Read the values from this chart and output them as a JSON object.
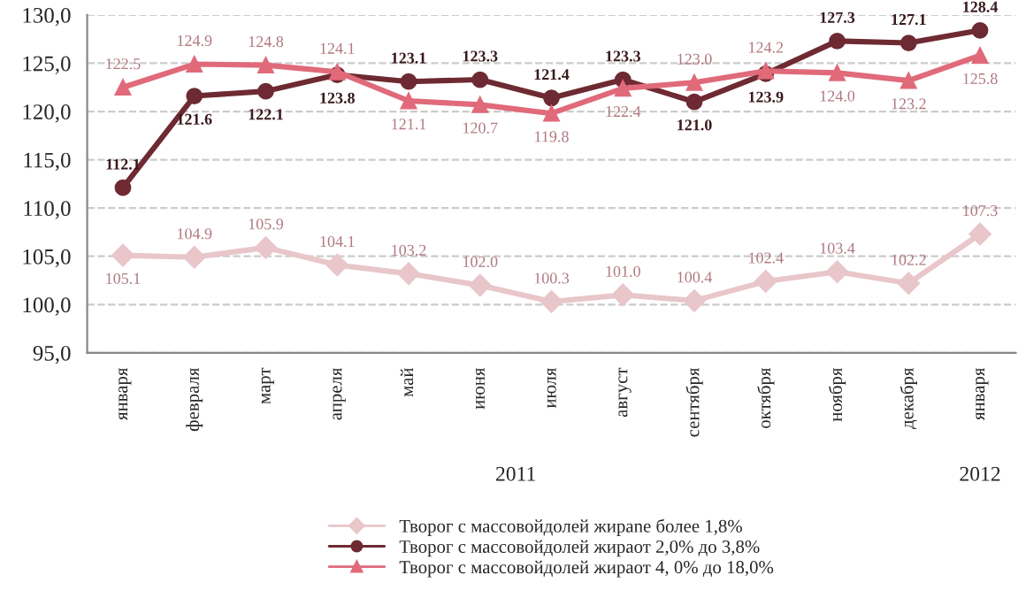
{
  "chart_data": {
    "type": "line",
    "categories": [
      "января",
      "февраля",
      "март",
      "апреля",
      "май",
      "июня",
      "июля",
      "август",
      "сентября",
      "октября",
      "ноября",
      "декабря",
      "января"
    ],
    "series": [
      {
        "name": "Творог с массовойдолей жирane более 1,8%",
        "color": "#e8c6ca",
        "marker": "diamond",
        "values": [
          105.1,
          104.9,
          105.9,
          104.1,
          103.2,
          102.0,
          100.3,
          101.0,
          100.4,
          102.4,
          103.4,
          102.2,
          107.3
        ],
        "value_labels": [
          "105.1",
          "104.9",
          "105.9",
          "104.1",
          "103.2",
          "102.0",
          "100.3",
          "101.0",
          "100.4",
          "102.4",
          "103.4",
          "102.2",
          "107.3"
        ]
      },
      {
        "name": "Творог с массовойдолей жираот 2,0% до 3,8%",
        "color": "#6e2a32",
        "marker": "circle",
        "values": [
          112.1,
          121.6,
          122.1,
          123.8,
          123.1,
          123.3,
          121.4,
          123.3,
          121.0,
          123.9,
          127.3,
          127.1,
          128.4
        ],
        "value_labels": [
          "112.1",
          "121.6",
          "122.1",
          "123.8",
          "123.1",
          "123.3",
          "121.4",
          "123.3",
          "121.0",
          "123.9",
          "127.3",
          "127.1",
          "128.4"
        ]
      },
      {
        "name": "Творог с массовойдолей жираот 4, 0% до 18,0%",
        "color": "#e06a7a",
        "marker": "triangle",
        "values": [
          122.5,
          124.9,
          124.8,
          124.1,
          121.1,
          120.7,
          119.8,
          122.4,
          123.0,
          124.2,
          124.0,
          123.2,
          125.8
        ],
        "value_labels": [
          "122.5",
          "124.9",
          "124.8",
          "124.1",
          "121.1",
          "120.7",
          "119.8",
          "122.4",
          "123.0",
          "124.2",
          "124.0",
          "123.2",
          "125.8"
        ]
      }
    ],
    "ylim": [
      95,
      130
    ],
    "yticks": [
      {
        "value": 95,
        "label": "95,0"
      },
      {
        "value": 100,
        "label": "100,0"
      },
      {
        "value": 105,
        "label": "105,0"
      },
      {
        "value": 110,
        "label": "110,0"
      },
      {
        "value": 115,
        "label": "115,0"
      },
      {
        "value": 120,
        "label": "120,0"
      },
      {
        "value": 125,
        "label": "125,0"
      },
      {
        "value": 130,
        "label": "130,0"
      }
    ],
    "grid": "y",
    "legend": "bottom",
    "line_style": "solid",
    "annotations": [
      "2011",
      "2012"
    ]
  }
}
